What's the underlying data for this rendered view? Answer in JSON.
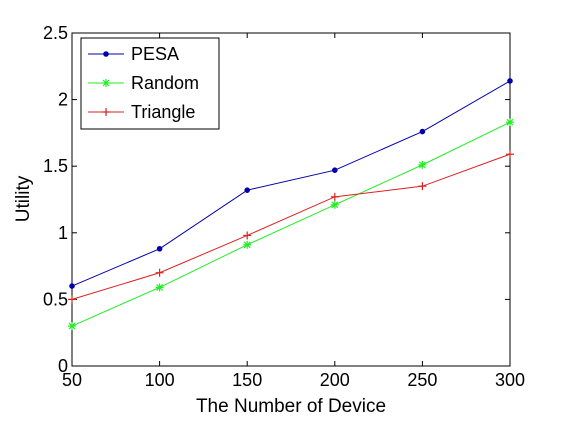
{
  "chart_data": {
    "type": "line",
    "xlabel": "The Number of Device",
    "ylabel": "Utility",
    "x": [
      50,
      100,
      150,
      200,
      250,
      300
    ],
    "xlim": [
      50,
      300
    ],
    "ylim": [
      0,
      2.5
    ],
    "xticks": [
      "50",
      "100",
      "150",
      "200",
      "250",
      "300"
    ],
    "yticks": [
      "0",
      "0.5",
      "1",
      "1.5",
      "2",
      "2.5"
    ],
    "grid": false,
    "legend_position": "top-left",
    "series": [
      {
        "name": "PESA",
        "color": "#0000aa",
        "marker": "dot",
        "values": [
          0.6,
          0.88,
          1.32,
          1.47,
          1.76,
          2.14
        ]
      },
      {
        "name": "Random",
        "color": "#22ee22",
        "marker": "star",
        "values": [
          0.3,
          0.59,
          0.91,
          1.21,
          1.51,
          1.83
        ]
      },
      {
        "name": "Triangle",
        "color": "#dd2222",
        "marker": "plus",
        "values": [
          0.5,
          0.7,
          0.98,
          1.27,
          1.35,
          1.59
        ]
      }
    ]
  }
}
